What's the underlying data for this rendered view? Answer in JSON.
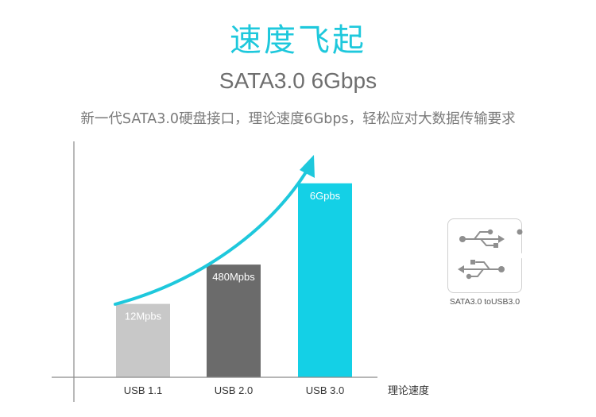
{
  "header": {
    "title": "速度飞起",
    "subtitle": "SATA3.0 6Gbps",
    "description": "新一代SATA3.0硬盘接口，理论速度6Gbps，轻松应对大数据传输要求"
  },
  "chart_data": {
    "type": "bar",
    "categories": [
      "USB 1.1",
      "USB 2.0",
      "USB 3.0"
    ],
    "bar_labels": [
      "12Mpbs",
      "480Mpbs",
      "6Gpbs"
    ],
    "values": [
      12,
      480,
      6000
    ],
    "relative_heights": [
      0.28,
      0.43,
      0.74
    ],
    "bar_colors": [
      "#c8c8c8",
      "#6b6b6b",
      "#14d0e6"
    ],
    "xlabel": "理论速度",
    "ylabel": "",
    "trend_arrow": true,
    "arrow_color": "#1ec8dc",
    "grid": false
  },
  "badge": {
    "icon": "usb-icon",
    "caption": "SATA3.0 toUSB3.0"
  }
}
